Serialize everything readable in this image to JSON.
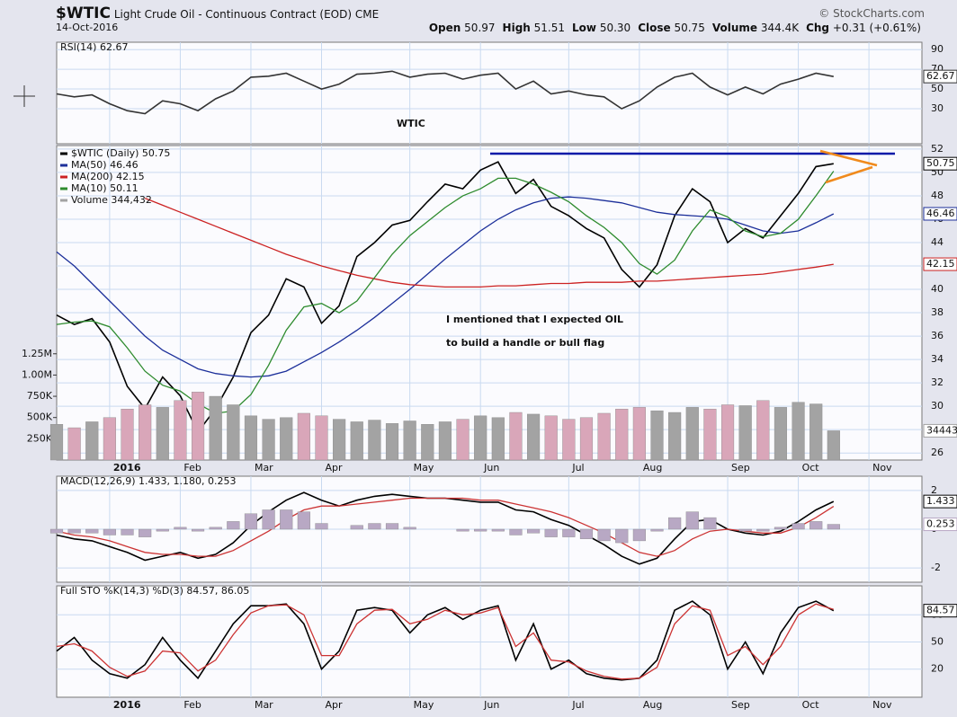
{
  "header": {
    "symbol": "$WTIC",
    "name": "Light Crude Oil - Continuous Contract (EOD)",
    "exchange": "CME",
    "date": "14-Oct-2016",
    "copyright": "© StockCharts.com",
    "stats": [
      {
        "label": "Open",
        "value": "50.97"
      },
      {
        "label": "High",
        "value": "51.51"
      },
      {
        "label": "Low",
        "value": "50.30"
      },
      {
        "label": "Close",
        "value": "50.75"
      },
      {
        "label": "Volume",
        "value": "344.4K"
      },
      {
        "label": "Chg",
        "value": "+0.31 (+0.61%)"
      }
    ]
  },
  "chart_data": [
    {
      "type": "line",
      "title": "RSI(14) 62.67",
      "annotation": "WTIC",
      "ylim": [
        -5.6,
        97.5
      ],
      "yticks": [
        30,
        50,
        70,
        90
      ],
      "grid": true,
      "series": [
        {
          "color": "#333333",
          "tag": true,
          "values": [
            45,
            42,
            44,
            35,
            28,
            25,
            38,
            35,
            28,
            40,
            48,
            62,
            63,
            66,
            58,
            50,
            55,
            65,
            66,
            68,
            62,
            65,
            66,
            60,
            64,
            66,
            50,
            58,
            45,
            48,
            44,
            42,
            30,
            38,
            52,
            62,
            66,
            52,
            44,
            52,
            45,
            55,
            60,
            66,
            62.67,
            null,
            null,
            null,
            null,
            null
          ]
        }
      ]
    },
    {
      "type": "line",
      "annotations": [
        "I mentioned that I expected OIL",
        "to build a handle or bull flag"
      ],
      "categories": [
        null,
        null,
        null,
        "2016",
        null,
        null,
        null,
        "Feb",
        null,
        null,
        null,
        "Mar",
        null,
        null,
        null,
        "Apr",
        null,
        null,
        null,
        null,
        "May",
        null,
        null,
        null,
        "Jun",
        null,
        null,
        null,
        null,
        "Jul",
        null,
        null,
        null,
        "Aug",
        null,
        null,
        null,
        null,
        "Sep",
        null,
        null,
        null,
        "Oct",
        null,
        null,
        null,
        "Nov",
        null,
        null,
        null
      ],
      "ylim": [
        25.4,
        52.3
      ],
      "yticks": [
        26,
        28,
        30,
        32,
        34,
        36,
        38,
        40,
        42,
        44,
        46,
        48,
        50,
        52
      ],
      "grid": true,
      "y2lim": [
        0,
        3700000
      ],
      "y2ticks": [
        {
          "value": 250000,
          "label": "250K"
        },
        {
          "value": 500000,
          "label": "500K"
        },
        {
          "value": 750000,
          "label": "750K"
        },
        {
          "value": 1000000,
          "label": "1.00M"
        },
        {
          "value": 1250000,
          "label": "1.25M"
        }
      ],
      "series": [
        {
          "name": "$WTIC (Daily) 50.75",
          "color": "#000000",
          "tag": true,
          "values": [
            37.8,
            37,
            37.5,
            35.5,
            31.7,
            29.8,
            32.5,
            30.9,
            27.8,
            29.8,
            32.5,
            36.3,
            37.8,
            40.9,
            40.2,
            37.1,
            38.6,
            42.8,
            44,
            45.5,
            45.9,
            47.5,
            49,
            48.6,
            50.2,
            50.9,
            48.2,
            49.4,
            47.1,
            46.3,
            45.2,
            44.4,
            41.7,
            40.2,
            42.1,
            46.3,
            48.6,
            47.5,
            44,
            45.2,
            44.4,
            46.3,
            48.2,
            50.5,
            50.75,
            null,
            null,
            null,
            null,
            null
          ]
        },
        {
          "name": "MA(50) 46.46",
          "color": "#1c2f9a",
          "tag": true,
          "values": [
            43.2,
            42,
            40.5,
            39,
            37.5,
            36,
            34.8,
            34,
            33.2,
            32.8,
            32.6,
            32.5,
            32.6,
            33,
            33.8,
            34.6,
            35.5,
            36.5,
            37.6,
            38.8,
            40,
            41.3,
            42.6,
            43.8,
            45,
            46,
            46.8,
            47.4,
            47.8,
            47.9,
            47.8,
            47.6,
            47.4,
            47,
            46.6,
            46.4,
            46.3,
            46.2,
            46,
            45.5,
            45,
            44.8,
            45,
            45.7,
            46.46,
            null,
            null,
            null,
            null,
            null
          ]
        },
        {
          "name": "MA(200) 42.15",
          "color": "#cc2222",
          "tag": true,
          "values": [
            null,
            null,
            null,
            null,
            null,
            47.8,
            47.2,
            46.6,
            46,
            45.4,
            44.8,
            44.2,
            43.6,
            43,
            42.5,
            42,
            41.6,
            41.2,
            40.9,
            40.6,
            40.4,
            40.3,
            40.2,
            40.2,
            40.2,
            40.3,
            40.3,
            40.4,
            40.5,
            40.5,
            40.6,
            40.6,
            40.6,
            40.7,
            40.7,
            40.8,
            40.9,
            41,
            41.1,
            41.2,
            41.3,
            41.5,
            41.7,
            41.9,
            42.15,
            null,
            null,
            null,
            null,
            null
          ]
        },
        {
          "name": "MA(10) 50.11",
          "color": "#2e8b2e",
          "values": [
            37,
            37.2,
            37.3,
            36.8,
            35,
            33,
            31.8,
            31.3,
            30.2,
            29.4,
            29.6,
            31,
            33.5,
            36.5,
            38.5,
            38.8,
            38,
            39,
            41,
            43,
            44.6,
            45.8,
            47,
            48,
            48.6,
            49.5,
            49.5,
            49,
            48.3,
            47.5,
            46.3,
            45.3,
            44,
            42.2,
            41.3,
            42.5,
            45,
            46.8,
            46.2,
            45,
            44.5,
            44.8,
            46,
            48,
            50.11,
            null,
            null,
            null,
            null,
            null
          ]
        },
        {
          "name": "Volume 344,432",
          "type": "bar",
          "axis": "y2",
          "color": "#a3a3a3",
          "down_color": "#d9a6b9",
          "tag": true,
          "values": [
            420000,
            380000,
            450000,
            500000,
            600000,
            650000,
            620000,
            700000,
            800000,
            750000,
            650000,
            520000,
            480000,
            500000,
            550000,
            520000,
            480000,
            450000,
            470000,
            430000,
            460000,
            420000,
            450000,
            480000,
            520000,
            500000,
            560000,
            540000,
            520000,
            480000,
            500000,
            550000,
            600000,
            620000,
            580000,
            560000,
            620000,
            600000,
            650000,
            640000,
            700000,
            620000,
            680000,
            660000,
            344432,
            null,
            null,
            null,
            null,
            null
          ]
        }
      ]
    },
    {
      "type": "line",
      "title": "MACD(12,26,9) 1.433, 1.180, 0.253",
      "ylim": [
        -2.74,
        2.74
      ],
      "yticks": [
        -2,
        0,
        2
      ],
      "grid": true,
      "series": [
        {
          "color": "#000000",
          "tag": true,
          "values": [
            -0.3,
            -0.5,
            -0.6,
            -0.9,
            -1.2,
            -1.6,
            -1.4,
            -1.2,
            -1.5,
            -1.3,
            -0.7,
            0.2,
            0.9,
            1.5,
            1.9,
            1.5,
            1.2,
            1.5,
            1.7,
            1.8,
            1.7,
            1.6,
            1.6,
            1.5,
            1.4,
            1.4,
            1.0,
            0.9,
            0.5,
            0.2,
            -0.3,
            -0.8,
            -1.4,
            -1.8,
            -1.5,
            -0.5,
            0.4,
            0.5,
            0.0,
            -0.2,
            -0.3,
            -0.1,
            0.4,
            1.0,
            1.433,
            null,
            null,
            null,
            null,
            null
          ]
        },
        {
          "color": "#cc3333",
          "values": [
            -0.1,
            -0.3,
            -0.4,
            -0.6,
            -0.9,
            -1.2,
            -1.3,
            -1.3,
            -1.4,
            -1.4,
            -1.1,
            -0.6,
            -0.1,
            0.5,
            1.0,
            1.2,
            1.2,
            1.3,
            1.4,
            1.5,
            1.6,
            1.6,
            1.6,
            1.6,
            1.5,
            1.5,
            1.3,
            1.1,
            0.9,
            0.6,
            0.2,
            -0.2,
            -0.7,
            -1.2,
            -1.4,
            -1.1,
            -0.5,
            -0.1,
            0.0,
            -0.1,
            -0.2,
            -0.2,
            0.1,
            0.6,
            1.18,
            null,
            null,
            null,
            null,
            null
          ]
        },
        {
          "type": "bar",
          "color": "#b8a8c4",
          "tag": true,
          "values": [
            -0.2,
            -0.2,
            -0.2,
            -0.3,
            -0.3,
            -0.4,
            -0.1,
            0.1,
            -0.1,
            0.1,
            0.4,
            0.8,
            1.0,
            1.0,
            0.9,
            0.3,
            0,
            0.2,
            0.3,
            0.3,
            0.1,
            0,
            0,
            -0.1,
            -0.1,
            -0.1,
            -0.3,
            -0.2,
            -0.4,
            -0.4,
            -0.5,
            -0.6,
            -0.7,
            -0.6,
            -0.1,
            0.6,
            0.9,
            0.6,
            0,
            -0.1,
            -0.1,
            0.1,
            0.3,
            0.4,
            0.253,
            null,
            null,
            null,
            null,
            null
          ]
        }
      ]
    },
    {
      "type": "line",
      "title": "Full STO %K(14,3) %D(3) 84.57, 86.05",
      "categories": [
        null,
        null,
        null,
        "2016",
        null,
        null,
        null,
        "Feb",
        null,
        null,
        null,
        "Mar",
        null,
        null,
        null,
        "Apr",
        null,
        null,
        null,
        null,
        "May",
        null,
        null,
        null,
        "Jun",
        null,
        null,
        null,
        null,
        "Jul",
        null,
        null,
        null,
        "Aug",
        null,
        null,
        null,
        null,
        "Sep",
        null,
        null,
        null,
        "Oct",
        null,
        null,
        null,
        "Nov",
        null,
        null,
        null
      ],
      "ylim": [
        -11,
        112
      ],
      "yticks": [
        20,
        50,
        80
      ],
      "grid": true,
      "series": [
        {
          "color": "#000000",
          "tag": true,
          "values": [
            40,
            55,
            30,
            15,
            10,
            25,
            55,
            30,
            10,
            40,
            70,
            90,
            90,
            92,
            70,
            20,
            40,
            85,
            88,
            85,
            60,
            80,
            88,
            75,
            85,
            90,
            30,
            70,
            20,
            30,
            15,
            10,
            8,
            10,
            30,
            85,
            95,
            80,
            20,
            50,
            15,
            60,
            88,
            95,
            84.57,
            null,
            null,
            null,
            null,
            null
          ]
        },
        {
          "color": "#cc3333",
          "values": [
            45,
            48,
            40,
            22,
            12,
            18,
            40,
            38,
            18,
            30,
            58,
            82,
            90,
            91,
            80,
            35,
            35,
            70,
            85,
            86,
            70,
            75,
            85,
            80,
            82,
            88,
            45,
            60,
            30,
            28,
            18,
            12,
            9,
            10,
            22,
            70,
            90,
            85,
            35,
            45,
            25,
            45,
            80,
            92,
            86.05,
            null,
            null,
            null,
            null,
            null
          ]
        }
      ]
    }
  ]
}
